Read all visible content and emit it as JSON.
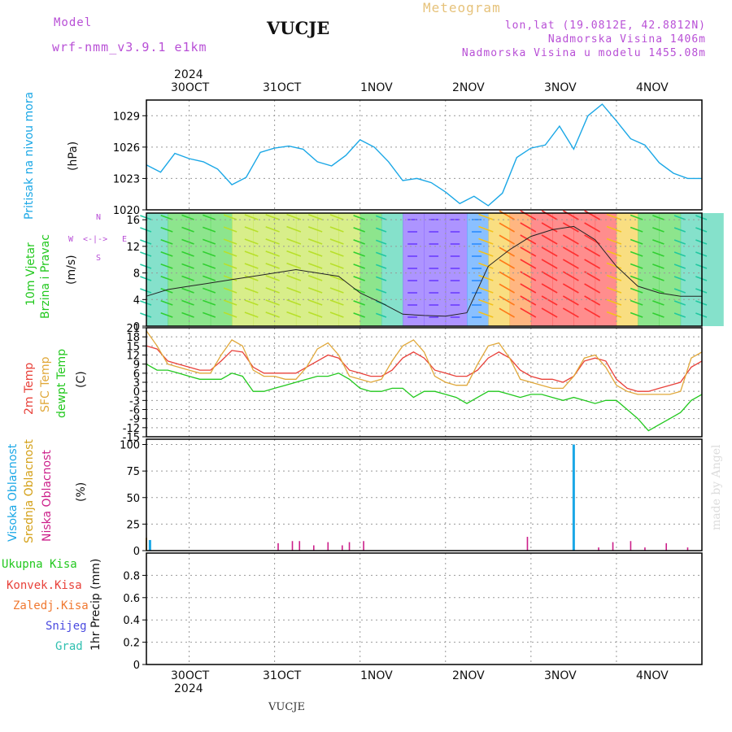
{
  "header": {
    "model_label": "Model",
    "model_name": "wrf-nmm_v3.9.1  e1km",
    "station": "VUCJE",
    "product": "Meteogram",
    "coords": "lon,lat (19.0812E, 42.8812N)",
    "elevation": "Nadmorska Visina 1406m",
    "model_elevation": "Nadmorska Visina u modelu 1455.08m",
    "credit": "made by Angel",
    "footer_station": "VUCJE"
  },
  "time_axis": {
    "year": "2024",
    "labels": [
      "30OCT",
      "31OCT",
      "1NOV",
      "2NOV",
      "3NOV",
      "4NOV"
    ],
    "range_hours": [
      -12,
      144
    ]
  },
  "colors": {
    "pressure": "#1aa7e6",
    "temp_2m": "#e8413a",
    "temp_sfc": "#e0a83a",
    "dewpoint": "#22c81e",
    "cloud_high": "#1aa7e6",
    "cloud_mid": "#d4a017",
    "cloud_low": "#cc1f8a",
    "label_pressure": "#1aa7e6",
    "label_wind": "#22c81e",
    "label_compass": "#b84fd6",
    "header_purple": "#b84fd6",
    "header_gold": "#e6c27a"
  },
  "chart_data": [
    {
      "type": "line",
      "panel": "pressure",
      "ylabel_title": "Pritisak na nivou mora",
      "ylabel_units": "(hPa)",
      "ylim": [
        1020,
        1030.5
      ],
      "yticks": [
        "1020",
        "1023",
        "1026",
        "1029"
      ],
      "grid": true,
      "series": [
        {
          "x": [
            -12,
            -8,
            -4,
            0,
            4,
            8,
            12,
            16,
            20,
            24,
            28,
            32,
            36,
            40,
            44,
            48,
            52,
            56,
            60,
            64,
            68,
            72,
            76,
            80,
            84,
            88,
            92,
            96,
            100,
            104,
            108,
            112,
            116,
            120,
            124,
            128,
            132,
            136,
            140,
            144
          ],
          "values": [
            1024.3,
            1023.6,
            1025.4,
            1024.9,
            1024.6,
            1023.9,
            1022.4,
            1023.1,
            1025.5,
            1025.9,
            1026.1,
            1025.8,
            1024.6,
            1024.2,
            1025.2,
            1026.7,
            1026.0,
            1024.6,
            1022.8,
            1023.0,
            1022.6,
            1021.7,
            1020.6,
            1021.3,
            1020.4,
            1021.6,
            1025.0,
            1025.9,
            1026.2,
            1028.0,
            1025.8,
            1029.0,
            1030.1,
            1028.5,
            1026.8,
            1026.2,
            1024.5,
            1023.5,
            1023.0,
            1023.0
          ]
        }
      ]
    },
    {
      "type": "heatmap",
      "panel": "wind",
      "ylabel_title": "10m Vjetar\nBrzina i Pravac",
      "ylabel_units": "(m/s)",
      "compass": {
        "n": "N",
        "s": "S",
        "e": "E",
        "w": "W"
      },
      "ylim": [
        0,
        17
      ],
      "yticks": [
        "0",
        "4",
        "8",
        "12",
        "16"
      ],
      "grid": true,
      "series": [
        {
          "name": "",
          "x": [
            -12,
            -6,
            0,
            6,
            12,
            18,
            24,
            30,
            36,
            42,
            48,
            54,
            60,
            66,
            72,
            78,
            84,
            90,
            96,
            102,
            108,
            114,
            120,
            126,
            132,
            138,
            144
          ],
          "values": [
            4.5,
            5.5,
            6.0,
            6.5,
            7.0,
            7.5,
            8.0,
            8.5,
            8.0,
            7.5,
            5.0,
            3.5,
            1.8,
            1.6,
            1.5,
            2.0,
            9.0,
            11.5,
            13.5,
            14.5,
            15.0,
            13.0,
            9.0,
            6.0,
            5.0,
            4.5,
            4.5
          ]
        }
      ]
    },
    {
      "type": "line",
      "panel": "temperature",
      "ylabel_titles": [
        "2m Temp",
        "SFC Temp",
        "dewpt Temp"
      ],
      "ylabel_units": "(C)",
      "ylim": [
        -15,
        21
      ],
      "yticks": [
        "-15",
        "-12",
        "-9",
        "-6",
        "-3",
        "0",
        "3",
        "6",
        "9",
        "12",
        "15",
        "18",
        "21"
      ],
      "grid": true,
      "series": [
        {
          "name": "2m Temp",
          "x": [
            -12,
            -9,
            -6,
            -3,
            0,
            3,
            6,
            9,
            12,
            15,
            18,
            21,
            24,
            27,
            30,
            33,
            36,
            39,
            42,
            45,
            48,
            51,
            54,
            57,
            60,
            63,
            66,
            69,
            72,
            75,
            78,
            81,
            84,
            87,
            90,
            93,
            96,
            99,
            102,
            105,
            108,
            111,
            114,
            117,
            120,
            123,
            126,
            129,
            132,
            135,
            138,
            141,
            144
          ],
          "values": [
            15,
            14,
            10,
            9,
            8,
            7,
            7,
            10,
            13.5,
            13,
            8,
            6,
            6,
            6,
            6,
            8,
            10,
            12,
            11,
            7,
            6,
            5,
            5,
            7,
            11,
            13,
            11,
            7,
            6,
            5,
            5,
            7,
            11,
            13,
            11,
            7,
            5,
            4,
            4,
            3,
            5,
            10,
            11,
            10,
            4,
            1,
            0,
            0,
            1,
            2,
            3,
            8,
            10
          ]
        },
        {
          "name": "SFC Temp",
          "x": [
            -12,
            -9,
            -6,
            -3,
            0,
            3,
            6,
            9,
            12,
            15,
            18,
            21,
            24,
            27,
            30,
            33,
            36,
            39,
            42,
            45,
            48,
            51,
            54,
            57,
            60,
            63,
            66,
            69,
            72,
            75,
            78,
            81,
            84,
            87,
            90,
            93,
            96,
            99,
            102,
            105,
            108,
            111,
            114,
            117,
            120,
            123,
            126,
            129,
            132,
            135,
            138,
            141,
            144
          ],
          "values": [
            20,
            15,
            9,
            8,
            7,
            6,
            6,
            12,
            17,
            15,
            7,
            5,
            5,
            4,
            4,
            8,
            14,
            16,
            12,
            5,
            4,
            3,
            4,
            10,
            15,
            17,
            13,
            5,
            3,
            2,
            2,
            9,
            15,
            16,
            11,
            4,
            3,
            2,
            1,
            1,
            5,
            11,
            12,
            8,
            2,
            0,
            -1,
            -1,
            -1,
            -1,
            0,
            11,
            13
          ]
        },
        {
          "name": "dewpt Temp",
          "x": [
            -12,
            -9,
            -6,
            -3,
            0,
            3,
            6,
            9,
            12,
            15,
            18,
            21,
            24,
            27,
            30,
            33,
            36,
            39,
            42,
            45,
            48,
            51,
            54,
            57,
            60,
            63,
            66,
            69,
            72,
            75,
            78,
            81,
            84,
            87,
            90,
            93,
            96,
            99,
            102,
            105,
            108,
            111,
            114,
            117,
            120,
            123,
            126,
            129,
            132,
            135,
            138,
            141,
            144
          ],
          "values": [
            9,
            7,
            7,
            6,
            5,
            4,
            4,
            4,
            6,
            5,
            0,
            0,
            1,
            2,
            3,
            4,
            5,
            5,
            6,
            4,
            1,
            0,
            0,
            1,
            1,
            -2,
            0,
            0,
            -1,
            -2,
            -4,
            -2,
            0,
            0,
            -1,
            -2,
            -1,
            -1,
            -2,
            -3,
            -2,
            -3,
            -4,
            -3,
            -3,
            -6,
            -9,
            -13,
            -11,
            -9,
            -7,
            -3,
            -1
          ]
        }
      ]
    },
    {
      "type": "bar",
      "panel": "cloud",
      "ylabel_titles": [
        "Visoka Oblacnost",
        "Srednja Oblacnost",
        "Niska Oblacnost"
      ],
      "ylabel_units": "(%)",
      "ylim": [
        0,
        105
      ],
      "yticks": [
        "0",
        "25",
        "50",
        "75",
        "100"
      ],
      "grid": true,
      "series": [
        {
          "name": "Visoka Oblacnost",
          "x": [
            -11,
            108
          ],
          "values": [
            10,
            100
          ]
        },
        {
          "name": "Srednja Oblacnost",
          "x": [
            -12
          ],
          "values": [
            12
          ]
        },
        {
          "name": "Niska Oblacnost",
          "x": [
            25,
            29,
            31,
            35,
            39,
            43,
            45,
            49,
            95,
            115,
            119,
            124,
            128,
            134,
            140
          ],
          "values": [
            7,
            9,
            9,
            5,
            8,
            5,
            8,
            9,
            13,
            3,
            8,
            9,
            3,
            7,
            3
          ]
        }
      ]
    },
    {
      "type": "bar",
      "panel": "precip",
      "ylabel_titles": [
        "Ukupna Kisa",
        "Konvek.Kisa",
        "Zaledj.Kisa",
        "Snijeg",
        "Grad"
      ],
      "ylabel_units": "1hr Precip (mm)",
      "ylim": [
        0,
        1.0
      ],
      "yticks": [
        "0",
        "0.2",
        "0.4",
        "0.6",
        "0.8"
      ],
      "grid": true,
      "series": []
    }
  ]
}
